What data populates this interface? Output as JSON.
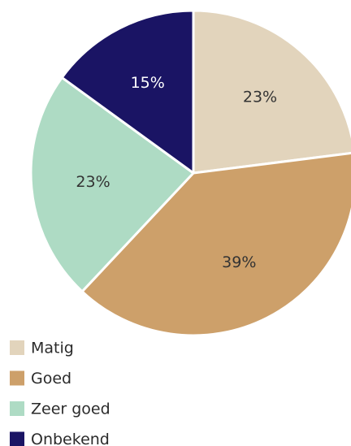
{
  "chart_data": {
    "type": "pie",
    "categories": [
      "Matig",
      "Goed",
      "Zeer goed",
      "Onbekend"
    ],
    "values": [
      23,
      39,
      23,
      15
    ],
    "value_labels": [
      "23%",
      "39%",
      "23%",
      "15%"
    ],
    "colors": [
      "#e2d4bc",
      "#cda06a",
      "#aedbc4",
      "#1a1464"
    ],
    "start_angle": 0,
    "direction": "clockwise",
    "legend": "bottom-left"
  }
}
